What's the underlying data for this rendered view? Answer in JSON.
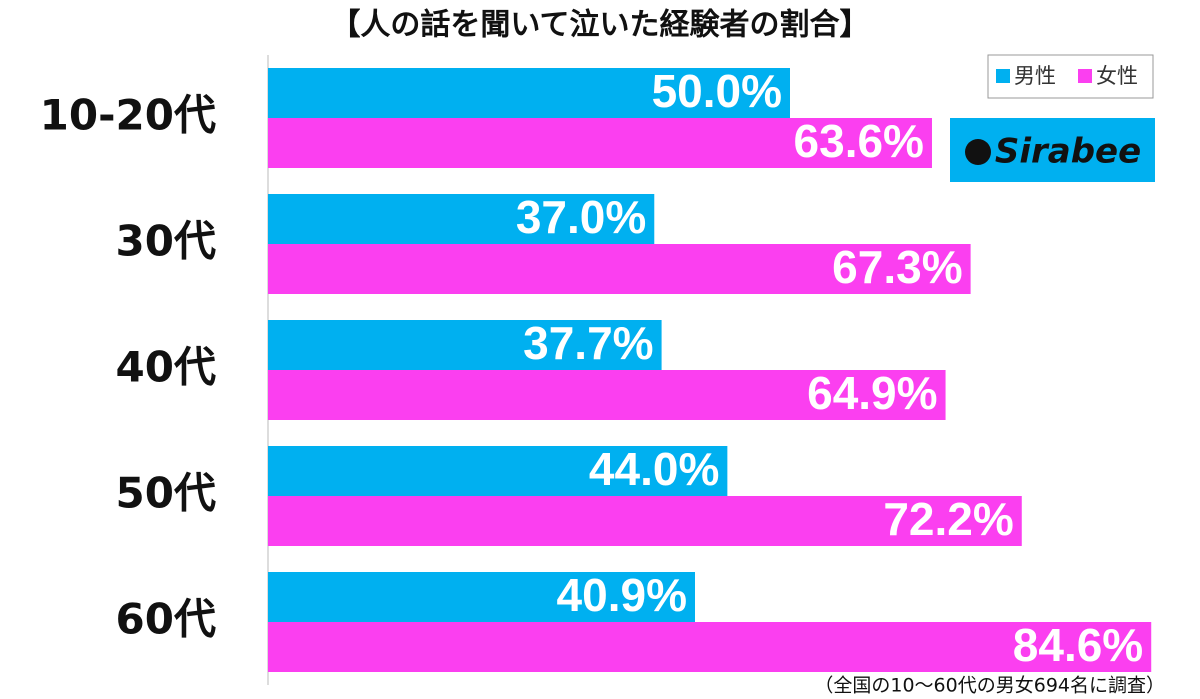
{
  "chart_data": {
    "type": "bar",
    "orientation": "horizontal",
    "title": "【人の話を聞いて泣いた経験者の割合】",
    "footnote": "（全国の10～60代の男女694名に調査）",
    "logo": "Sirabee",
    "categories": [
      "10-20代",
      "30代",
      "40代",
      "50代",
      "60代"
    ],
    "series": [
      {
        "name": "男性",
        "color": "#00b0f0",
        "values": [
          50.0,
          37.0,
          37.7,
          44.0,
          40.9
        ],
        "value_labels": [
          "50.0%",
          "37.0%",
          "37.7%",
          "44.0%",
          "40.9%"
        ]
      },
      {
        "name": "女性",
        "color": "#fb3ff0",
        "values": [
          63.6,
          67.3,
          64.9,
          72.2,
          84.6
        ],
        "value_labels": [
          "63.6%",
          "67.3%",
          "64.9%",
          "72.2%",
          "84.6%"
        ]
      }
    ],
    "xlim": [
      0,
      100
    ],
    "legend": "top-right"
  }
}
